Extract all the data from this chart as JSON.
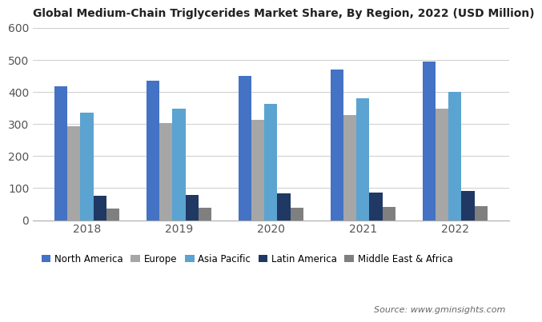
{
  "title": "Global Medium-Chain Triglycerides Market Share, By Region, 2022 (USD Million)",
  "years": [
    2018,
    2019,
    2020,
    2021,
    2022
  ],
  "series": {
    "North America": [
      418,
      436,
      450,
      471,
      496
    ],
    "Europe": [
      292,
      303,
      314,
      329,
      347
    ],
    "Asia Pacific": [
      336,
      349,
      363,
      381,
      400
    ],
    "Latin America": [
      77,
      80,
      83,
      87,
      92
    ],
    "Middle East & Africa": [
      37,
      40,
      40,
      42,
      45
    ]
  },
  "colors": {
    "North America": "#4472c4",
    "Europe": "#a6a6a6",
    "Asia Pacific": "#5ba3d0",
    "Latin America": "#1f3864",
    "Middle East & Africa": "#7f7f7f"
  },
  "ylim": [
    0,
    600
  ],
  "yticks": [
    0,
    100,
    200,
    300,
    400,
    500,
    600
  ],
  "source_text": "Source: www.gminsights.com",
  "background_color": "#ffffff",
  "bar_width": 0.14
}
